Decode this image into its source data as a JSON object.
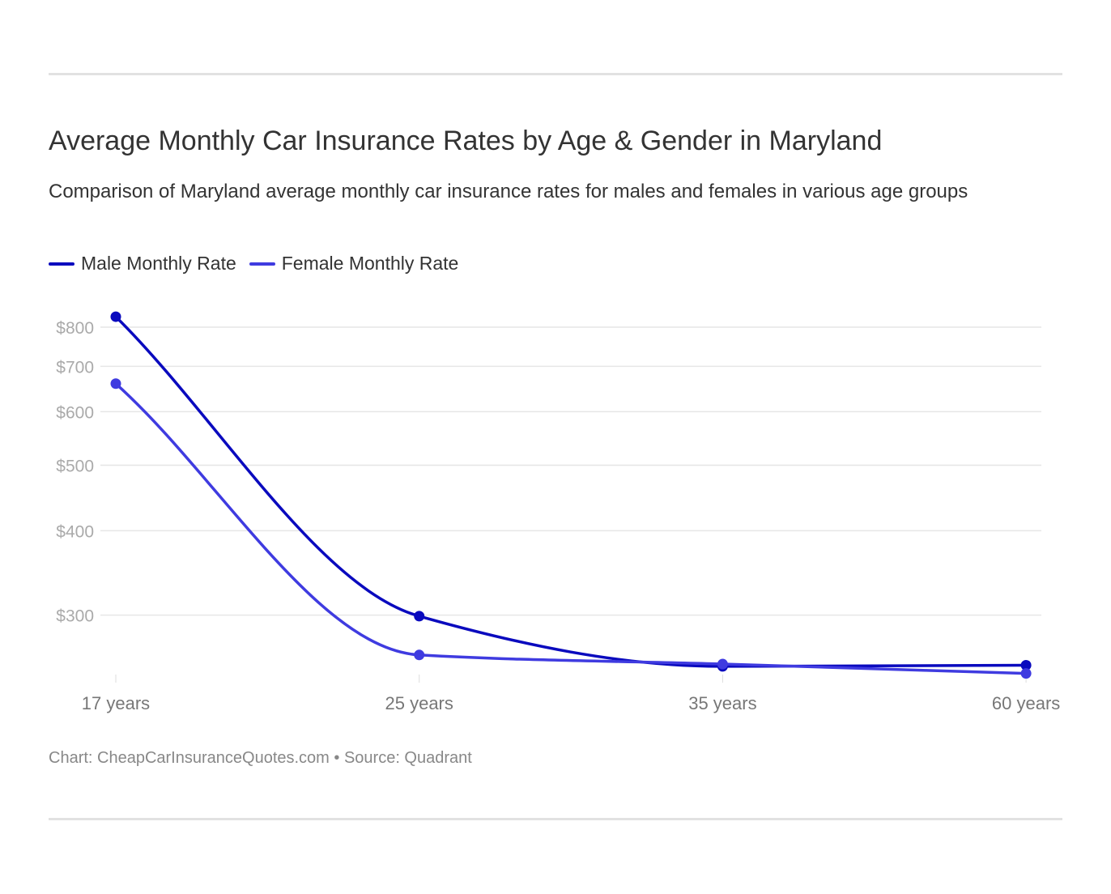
{
  "title": "Average Monthly Car Insurance Rates by Age & Gender in Maryland",
  "subtitle": "Comparison of Maryland average monthly car insurance rates for males and females in various age groups",
  "footer": "Chart: CheapCarInsuranceQuotes.com • Source: Quadrant",
  "chart_data": {
    "type": "line",
    "title": "Average Monthly Car Insurance Rates by Age & Gender in Maryland",
    "categories": [
      "17 years",
      "25 years",
      "35 years",
      "60 years"
    ],
    "yscale": "log",
    "yticks": [
      300,
      400,
      500,
      600,
      700,
      800
    ],
    "ytick_labels": [
      "$300",
      "$400",
      "$500",
      "$600",
      "$700",
      "$800"
    ],
    "ylim": [
      241,
      850
    ],
    "grid": true,
    "legend_position": "top-left",
    "series": [
      {
        "name": "Male Monthly Rate",
        "color": "#0a0abe",
        "values": [
          829,
          299,
          252,
          253
        ]
      },
      {
        "name": "Female Monthly Rate",
        "color": "#3f3be0",
        "values": [
          660,
          262,
          254,
          246
        ]
      }
    ]
  }
}
